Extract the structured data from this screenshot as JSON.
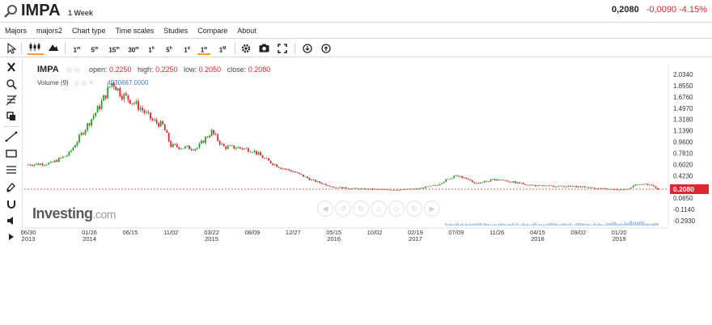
{
  "header": {
    "symbol": "IMPA",
    "interval": "1 Week",
    "price": "0,2080",
    "change": "-0,0090",
    "change_pct": "-4.15%"
  },
  "menu": [
    "Majors",
    "majors2",
    "Chart type",
    "Time scales",
    "Studies",
    "Compare",
    "About"
  ],
  "toolbar": {
    "intervals": [
      "1m",
      "5m",
      "15m",
      "30m",
      "1h",
      "5h",
      "1d",
      "1w",
      "1M"
    ],
    "active_interval": "1w"
  },
  "legend": {
    "symbol": "IMPA",
    "open_label": "open:",
    "open": "0.2250",
    "high_label": "high:",
    "high": "0.2250",
    "low_label": "low:",
    "low": "0.2050",
    "close_label": "close:",
    "close": "0.2080"
  },
  "volume": {
    "label": "Volume (9)",
    "value": "4930667.0000"
  },
  "logo": {
    "main": "Investing",
    "suffix": ".com"
  },
  "colors": {
    "up": "#2a9d2a",
    "down": "#e0252c",
    "accent": "#f2a21d",
    "price_tag": "#e0252c"
  },
  "chart_data": {
    "type": "candlestick",
    "title": "",
    "y_ticks": [
      2.034,
      1.855,
      1.676,
      1.497,
      1.318,
      1.139,
      0.96,
      0.781,
      0.602,
      0.423,
      0.244,
      0.065,
      -0.114,
      -0.293
    ],
    "y_tick_labels": [
      "2.0340",
      "1.8550",
      "1.6760",
      "1.4970",
      "1.3180",
      "1.1390",
      "0.9600",
      "0.7810",
      "0.6020",
      "0.4230",
      "",
      "0.0650",
      "-0.1140",
      "-0.2930"
    ],
    "ylim": [
      -0.293,
      2.034
    ],
    "x_ticks": [
      {
        "date": "2013-06-30",
        "label": "06/30",
        "year": "2013"
      },
      {
        "date": "2014-01-26",
        "label": "01/26",
        "year": "2014"
      },
      {
        "date": "2014-06-15",
        "label": "06/15",
        "year": ""
      },
      {
        "date": "2014-11-02",
        "label": "11/02",
        "year": ""
      },
      {
        "date": "2015-03-22",
        "label": "03/22",
        "year": "2015"
      },
      {
        "date": "2015-08-09",
        "label": "08/09",
        "year": ""
      },
      {
        "date": "2015-12-27",
        "label": "12/27",
        "year": ""
      },
      {
        "date": "2016-05-15",
        "label": "05/15",
        "year": "2016"
      },
      {
        "date": "2016-10-02",
        "label": "10/02",
        "year": ""
      },
      {
        "date": "2017-02-19",
        "label": "02/19",
        "year": "2017"
      },
      {
        "date": "2017-07-09",
        "label": "07/09",
        "year": ""
      },
      {
        "date": "2017-11-26",
        "label": "11/26",
        "year": ""
      },
      {
        "date": "2018-04-15",
        "label": "04/15",
        "year": "2018"
      },
      {
        "date": "2018-09-02",
        "label": "09/02",
        "year": ""
      },
      {
        "date": "2019-01-20",
        "label": "01/20",
        "year": "2019"
      }
    ],
    "last_price": 0.208,
    "last_price_label": "0.2080",
    "close_path": [
      [
        "2013-06-30",
        0.6
      ],
      [
        "2013-09-15",
        0.62
      ],
      [
        "2013-11-15",
        0.76
      ],
      [
        "2014-01-26",
        1.28
      ],
      [
        "2014-03-01",
        1.52
      ],
      [
        "2014-04-15",
        1.92
      ],
      [
        "2014-05-15",
        1.72
      ],
      [
        "2014-06-15",
        1.63
      ],
      [
        "2014-07-20",
        1.5
      ],
      [
        "2014-08-31",
        1.3
      ],
      [
        "2014-10-05",
        1.22
      ],
      [
        "2014-11-02",
        0.9
      ],
      [
        "2014-12-15",
        0.87
      ],
      [
        "2015-01-31",
        0.86
      ],
      [
        "2015-03-01",
        1.02
      ],
      [
        "2015-03-22",
        1.12
      ],
      [
        "2015-05-01",
        0.88
      ],
      [
        "2015-06-20",
        0.87
      ],
      [
        "2015-08-09",
        0.83
      ],
      [
        "2015-09-30",
        0.66
      ],
      [
        "2015-11-15",
        0.55
      ],
      [
        "2015-12-27",
        0.49
      ],
      [
        "2016-03-01",
        0.35
      ],
      [
        "2016-05-15",
        0.24
      ],
      [
        "2016-08-01",
        0.215
      ],
      [
        "2016-10-02",
        0.205
      ],
      [
        "2017-01-01",
        0.2
      ],
      [
        "2017-02-19",
        0.21
      ],
      [
        "2017-05-01",
        0.27
      ],
      [
        "2017-07-09",
        0.44
      ],
      [
        "2017-09-15",
        0.3
      ],
      [
        "2017-11-26",
        0.37
      ],
      [
        "2018-02-01",
        0.31
      ],
      [
        "2018-04-15",
        0.26
      ],
      [
        "2018-07-01",
        0.255
      ],
      [
        "2018-09-02",
        0.25
      ],
      [
        "2018-11-15",
        0.22
      ],
      [
        "2019-01-20",
        0.19
      ],
      [
        "2019-02-20",
        0.22
      ],
      [
        "2019-04-01",
        0.3
      ],
      [
        "2019-05-15",
        0.26
      ],
      [
        "2019-06-02",
        0.208
      ]
    ],
    "volume_series": "bars"
  }
}
